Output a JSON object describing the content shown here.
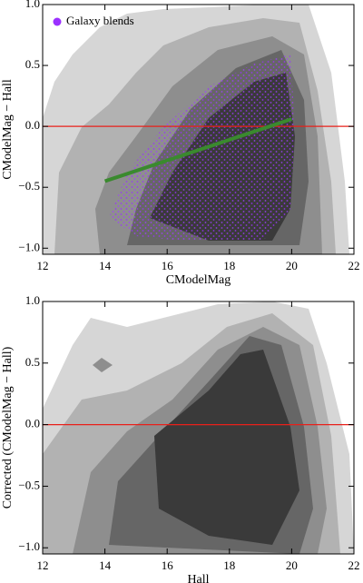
{
  "chart_data": [
    {
      "type": "contour",
      "xlabel": "CModelMag",
      "ylabel": "CModelMag − Hall",
      "xlim": [
        12,
        22
      ],
      "ylim": [
        -1.05,
        1.0
      ],
      "xticks": [
        12,
        14,
        16,
        18,
        20,
        22
      ],
      "yticks": [
        {
          "value": -1.0,
          "label": "−1.0"
        },
        {
          "value": -0.5,
          "label": "−0.5"
        },
        {
          "value": 0.0,
          "label": "0.0"
        },
        0.5,
        {
          "value": 1.0,
          "label": "1.0"
        }
      ],
      "series": [
        {
          "name": "Galaxy blends",
          "color": "#9b30ff"
        }
      ],
      "fit_line": {
        "x": [
          14,
          20
        ],
        "y": [
          -0.45,
          0.06
        ],
        "color": "#3a8a2e"
      },
      "reference_line": {
        "y": 0,
        "color": "#e8201a"
      }
    },
    {
      "type": "contour",
      "xlabel": "Hall",
      "ylabel": "Corrected (CModelMag − Hall)",
      "xlim": [
        12,
        22
      ],
      "ylim": [
        -1.05,
        1.0
      ],
      "xticks": [
        12,
        14,
        16,
        18,
        20,
        22
      ],
      "yticks": [
        {
          "value": -1.0,
          "label": "−1.0"
        },
        {
          "value": -0.5,
          "label": "−0.5"
        },
        {
          "value": 0.0,
          "label": "0.0"
        },
        0.5,
        {
          "value": 1.0,
          "label": "1.0"
        }
      ],
      "reference_line": {
        "y": 0,
        "color": "#e8201a"
      }
    }
  ]
}
